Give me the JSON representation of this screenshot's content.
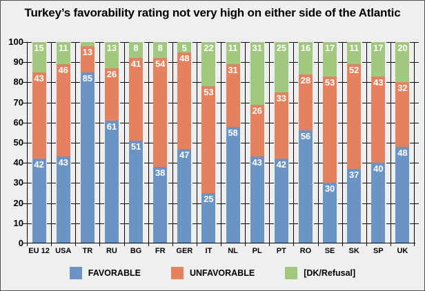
{
  "title": "Turkey’s favorability rating not very high on either side of the Atlantic",
  "chart_data": {
    "type": "bar",
    "stacked": true,
    "title": "Turkey’s favorability rating not very high on either side of the Atlantic",
    "categories": [
      "EU 12",
      "USA",
      "TR",
      "RU",
      "BG",
      "FR",
      "GER",
      "IT",
      "NL",
      "PL",
      "PT",
      "RO",
      "SE",
      "SK",
      "SP",
      "UK"
    ],
    "series": [
      {
        "name": "FAVORABLE",
        "color": "#6b93c4",
        "values": [
          42,
          43,
          85,
          61,
          51,
          38,
          47,
          25,
          58,
          43,
          42,
          56,
          30,
          37,
          40,
          48
        ],
        "labels": [
          "42",
          "43",
          "85",
          "61",
          "51",
          "38",
          "47",
          "25",
          "58",
          "43",
          "42",
          "56",
          "30",
          "37",
          "40",
          "48"
        ]
      },
      {
        "name": "UNFAVORABLE",
        "color": "#e5815e",
        "values": [
          43,
          46,
          13,
          26,
          41,
          54,
          48,
          53,
          31,
          26,
          33,
          28,
          53,
          52,
          43,
          32
        ],
        "labels": [
          "43",
          "46",
          "13",
          "26",
          "41",
          "54",
          "48",
          "53",
          "31",
          "26",
          "33",
          "28",
          "53",
          "52",
          "43",
          "32"
        ]
      },
      {
        "name": "[DK/Refusal]",
        "color": "#a1c87e",
        "values": [
          15,
          11,
          2,
          13,
          8,
          8,
          5,
          22,
          11,
          31,
          25,
          16,
          17,
          11,
          17,
          20
        ],
        "labels": [
          "15",
          "11",
          "",
          "13",
          "8",
          "8",
          "5",
          "22",
          "11",
          "31",
          "25",
          "16",
          "17",
          "11",
          "17",
          "20"
        ]
      }
    ],
    "ylim": [
      0,
      100
    ],
    "yticks": [
      0,
      10,
      20,
      30,
      40,
      50,
      60,
      70,
      80,
      90,
      100
    ],
    "xlabel": "",
    "ylabel": "",
    "grid": true,
    "legend_position": "bottom"
  },
  "legend": {
    "items": [
      {
        "label": "FAVORABLE",
        "color": "#6b93c4"
      },
      {
        "label": "UNFAVORABLE",
        "color": "#e5815e"
      },
      {
        "label": "[DK/Refusal]",
        "color": "#a1c87e"
      }
    ]
  },
  "colors": {
    "background": "#efefef",
    "axis": "#000000",
    "bar_label": "#ffffff"
  }
}
